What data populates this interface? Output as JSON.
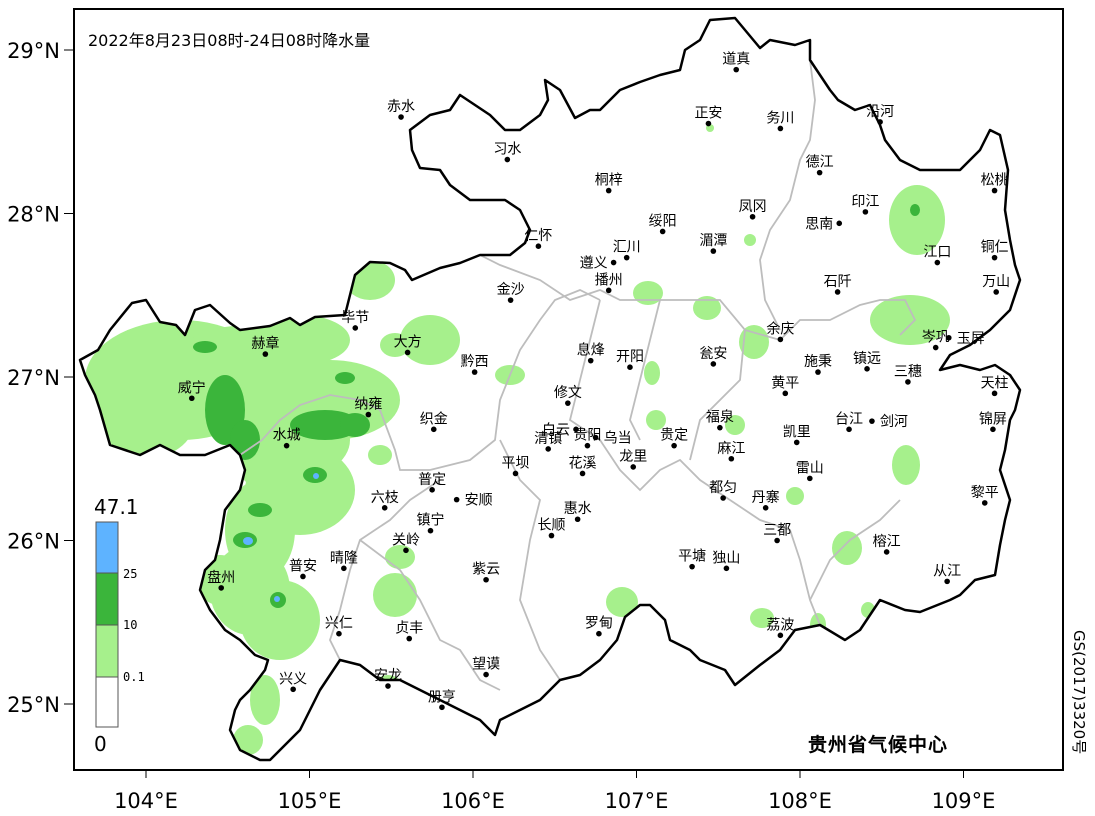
{
  "map": {
    "title": "2022年8月23日08时-24日08时降水量",
    "credit": "贵州省气候中心",
    "approval_number": "GS(2017)3320号",
    "x_ticks": [
      {
        "lon": 104,
        "label": "104°E"
      },
      {
        "lon": 105,
        "label": "105°E"
      },
      {
        "lon": 106,
        "label": "106°E"
      },
      {
        "lon": 107,
        "label": "107°E"
      },
      {
        "lon": 108,
        "label": "108°E"
      },
      {
        "lon": 109,
        "label": "109°E"
      }
    ],
    "y_ticks": [
      {
        "lat": 29,
        "label": "29°N"
      },
      {
        "lat": 28,
        "label": "28°N"
      },
      {
        "lat": 27,
        "label": "27°N"
      },
      {
        "lat": 26,
        "label": "26°N"
      },
      {
        "lat": 25,
        "label": "25°N"
      }
    ],
    "extent": {
      "lon": [
        103.56,
        109.6
      ],
      "lat": [
        24.6,
        29.25
      ]
    },
    "legend": {
      "max_label": "47.1",
      "min_label": "0",
      "breaks": [
        "25",
        "10",
        "0.1"
      ],
      "colors": {
        "above_25": "#5eb3ff",
        "10_25": "#3bb53b",
        "0.1_10": "#a6f08c",
        "0_0.1": "#ffffff"
      }
    },
    "colors": {
      "province_border": "#000000",
      "county_border": "#bdbdbd"
    },
    "cities": [
      {
        "name": "道真",
        "lon": 107.61,
        "lat": 28.88
      },
      {
        "name": "赤水",
        "lon": 105.56,
        "lat": 28.59
      },
      {
        "name": "习水",
        "lon": 106.21,
        "lat": 28.33
      },
      {
        "name": "正安",
        "lon": 107.44,
        "lat": 28.55
      },
      {
        "name": "务川",
        "lon": 107.88,
        "lat": 28.52
      },
      {
        "name": "沿河",
        "lon": 108.49,
        "lat": 28.56
      },
      {
        "name": "德江",
        "lon": 108.12,
        "lat": 28.25
      },
      {
        "name": "桐梓",
        "lon": 106.83,
        "lat": 28.14
      },
      {
        "name": "凤冈",
        "lon": 107.71,
        "lat": 27.98
      },
      {
        "name": "印江",
        "lon": 108.4,
        "lat": 28.01
      },
      {
        "name": "思南",
        "lon": 108.24,
        "lat": 27.94
      },
      {
        "name": "松桃",
        "lon": 109.19,
        "lat": 28.14
      },
      {
        "name": "绥阳",
        "lon": 107.16,
        "lat": 27.89
      },
      {
        "name": "仁怀",
        "lon": 106.4,
        "lat": 27.8
      },
      {
        "name": "遵义",
        "lon": 106.86,
        "lat": 27.7
      },
      {
        "name": "汇川",
        "lon": 106.94,
        "lat": 27.73
      },
      {
        "name": "湄潭",
        "lon": 107.47,
        "lat": 27.77
      },
      {
        "name": "江口",
        "lon": 108.84,
        "lat": 27.7
      },
      {
        "name": "铜仁",
        "lon": 109.19,
        "lat": 27.73
      },
      {
        "name": "石阡",
        "lon": 108.23,
        "lat": 27.52
      },
      {
        "name": "万山",
        "lon": 109.2,
        "lat": 27.52
      },
      {
        "name": "播州",
        "lon": 106.83,
        "lat": 27.53
      },
      {
        "name": "金沙",
        "lon": 106.23,
        "lat": 27.47
      },
      {
        "name": "毕节",
        "lon": 105.28,
        "lat": 27.3
      },
      {
        "name": "大方",
        "lon": 105.6,
        "lat": 27.15
      },
      {
        "name": "余庆",
        "lon": 107.88,
        "lat": 27.23
      },
      {
        "name": "岑巩",
        "lon": 108.83,
        "lat": 27.18
      },
      {
        "name": "玉屏",
        "lon": 108.91,
        "lat": 27.24
      },
      {
        "name": "黔西",
        "lon": 106.01,
        "lat": 27.03
      },
      {
        "name": "赫章",
        "lon": 104.73,
        "lat": 27.14
      },
      {
        "name": "息烽",
        "lon": 106.72,
        "lat": 27.1
      },
      {
        "name": "开阳",
        "lon": 106.96,
        "lat": 27.06
      },
      {
        "name": "瓮安",
        "lon": 107.47,
        "lat": 27.08
      },
      {
        "name": "施秉",
        "lon": 108.11,
        "lat": 27.03
      },
      {
        "name": "镇远",
        "lon": 108.41,
        "lat": 27.05
      },
      {
        "name": "三穗",
        "lon": 108.66,
        "lat": 26.97
      },
      {
        "name": "天柱",
        "lon": 109.19,
        "lat": 26.9
      },
      {
        "name": "黄平",
        "lon": 107.91,
        "lat": 26.9
      },
      {
        "name": "威宁",
        "lon": 104.28,
        "lat": 26.87
      },
      {
        "name": "修文",
        "lon": 106.58,
        "lat": 26.84
      },
      {
        "name": "纳雍",
        "lon": 105.36,
        "lat": 26.77
      },
      {
        "name": "织金",
        "lon": 105.76,
        "lat": 26.68
      },
      {
        "name": "白云",
        "lon": 106.63,
        "lat": 26.68
      },
      {
        "name": "乌当",
        "lon": 106.75,
        "lat": 26.63
      },
      {
        "name": "福泉",
        "lon": 107.51,
        "lat": 26.69
      },
      {
        "name": "剑河",
        "lon": 108.44,
        "lat": 26.73
      },
      {
        "name": "台江",
        "lon": 108.3,
        "lat": 26.68
      },
      {
        "name": "锦屏",
        "lon": 109.18,
        "lat": 26.68
      },
      {
        "name": "贵阳",
        "lon": 106.7,
        "lat": 26.58
      },
      {
        "name": "清镇",
        "lon": 106.46,
        "lat": 26.56
      },
      {
        "name": "贵定",
        "lon": 107.23,
        "lat": 26.58
      },
      {
        "name": "水城",
        "lon": 104.86,
        "lat": 26.58
      },
      {
        "name": "凯里",
        "lon": 107.98,
        "lat": 26.6
      },
      {
        "name": "麻江",
        "lon": 107.58,
        "lat": 26.5
      },
      {
        "name": "雷山",
        "lon": 108.06,
        "lat": 26.38
      },
      {
        "name": "花溪",
        "lon": 106.67,
        "lat": 26.41
      },
      {
        "name": "龙里",
        "lon": 106.98,
        "lat": 26.45
      },
      {
        "name": "平坝",
        "lon": 106.26,
        "lat": 26.41
      },
      {
        "name": "都匀",
        "lon": 107.53,
        "lat": 26.26
      },
      {
        "name": "普定",
        "lon": 105.75,
        "lat": 26.31
      },
      {
        "name": "安顺",
        "lon": 105.9,
        "lat": 26.25
      },
      {
        "name": "丹寨",
        "lon": 107.79,
        "lat": 26.2
      },
      {
        "name": "黎平",
        "lon": 109.13,
        "lat": 26.23
      },
      {
        "name": "六枝",
        "lon": 105.46,
        "lat": 26.2
      },
      {
        "name": "惠水",
        "lon": 106.64,
        "lat": 26.13
      },
      {
        "name": "长顺",
        "lon": 106.48,
        "lat": 26.03
      },
      {
        "name": "镇宁",
        "lon": 105.74,
        "lat": 26.06
      },
      {
        "name": "三都",
        "lon": 107.86,
        "lat": 26.0
      },
      {
        "name": "关岭",
        "lon": 105.59,
        "lat": 25.94
      },
      {
        "name": "榕江",
        "lon": 108.53,
        "lat": 25.93
      },
      {
        "name": "平塘",
        "lon": 107.34,
        "lat": 25.84
      },
      {
        "name": "独山",
        "lon": 107.55,
        "lat": 25.83
      },
      {
        "name": "从江",
        "lon": 108.9,
        "lat": 25.75
      },
      {
        "name": "晴隆",
        "lon": 105.21,
        "lat": 25.83
      },
      {
        "name": "普安",
        "lon": 104.96,
        "lat": 25.78
      },
      {
        "name": "紫云",
        "lon": 106.08,
        "lat": 25.76
      },
      {
        "name": "盘州",
        "lon": 104.46,
        "lat": 25.71
      },
      {
        "name": "罗甸",
        "lon": 106.77,
        "lat": 25.43
      },
      {
        "name": "荔波",
        "lon": 107.88,
        "lat": 25.42
      },
      {
        "name": "兴仁",
        "lon": 105.18,
        "lat": 25.43
      },
      {
        "name": "贞丰",
        "lon": 105.61,
        "lat": 25.4
      },
      {
        "name": "望谟",
        "lon": 106.08,
        "lat": 25.18
      },
      {
        "name": "安龙",
        "lon": 105.48,
        "lat": 25.11
      },
      {
        "name": "兴义",
        "lon": 104.9,
        "lat": 25.09
      },
      {
        "name": "册亨",
        "lon": 105.81,
        "lat": 24.98
      }
    ]
  }
}
